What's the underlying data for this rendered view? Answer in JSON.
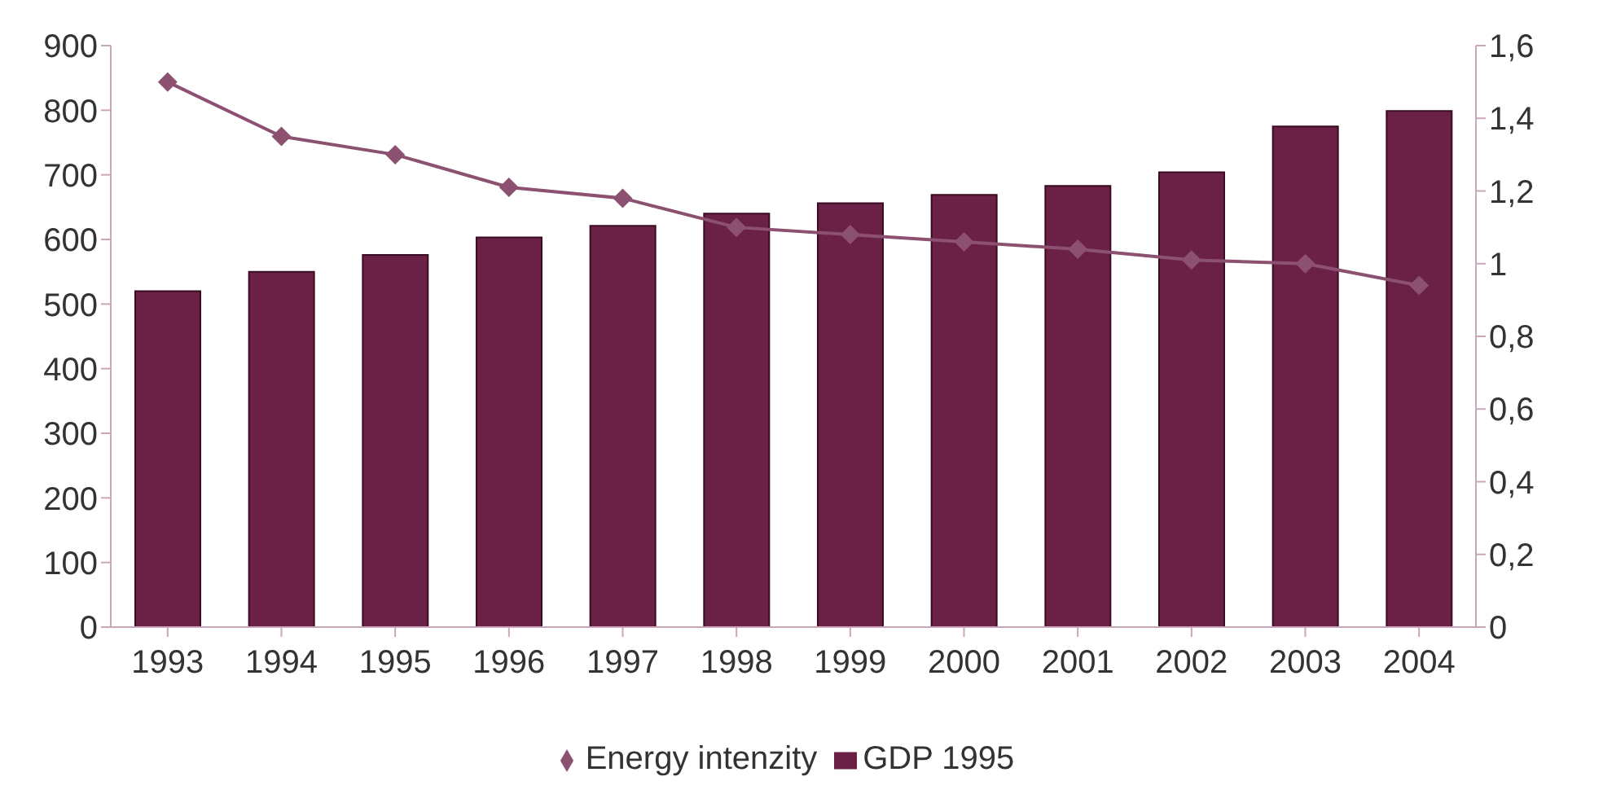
{
  "chart_data": {
    "type": "bar",
    "categories": [
      "1993",
      "1994",
      "1995",
      "1996",
      "1997",
      "1998",
      "1999",
      "2000",
      "2001",
      "2002",
      "2003",
      "2004"
    ],
    "series": [
      {
        "name": "GDP 1995",
        "color": "#6b2046",
        "values": [
          520,
          550,
          576,
          603,
          621,
          640,
          656,
          669,
          683,
          704,
          775,
          799
        ]
      },
      {
        "name": "Energy intenzity",
        "type": "line",
        "axis": "y2",
        "color": "#8c5070",
        "marker": "diamond",
        "values": [
          1.5,
          1.35,
          1.3,
          1.21,
          1.18,
          1.1,
          1.08,
          1.06,
          1.04,
          1.01,
          1.0,
          0.94
        ]
      }
    ],
    "ylim": [
      0,
      900
    ],
    "yticks": [
      0,
      100,
      200,
      300,
      400,
      500,
      600,
      700,
      800,
      900
    ],
    "y2lim": [
      0,
      1.6
    ],
    "y2ticks": [
      0,
      {
        "value": 0.2,
        "label": "0,2"
      },
      {
        "value": 0.4,
        "label": "0,4"
      },
      {
        "value": 0.6,
        "label": "0,6"
      },
      {
        "value": 0.8,
        "label": "0,8"
      },
      1,
      {
        "value": 1.2,
        "label": "1,2"
      },
      {
        "value": 1.4,
        "label": "1,4"
      },
      {
        "value": 1.6,
        "label": "1,6"
      }
    ],
    "legend": "bottom"
  }
}
